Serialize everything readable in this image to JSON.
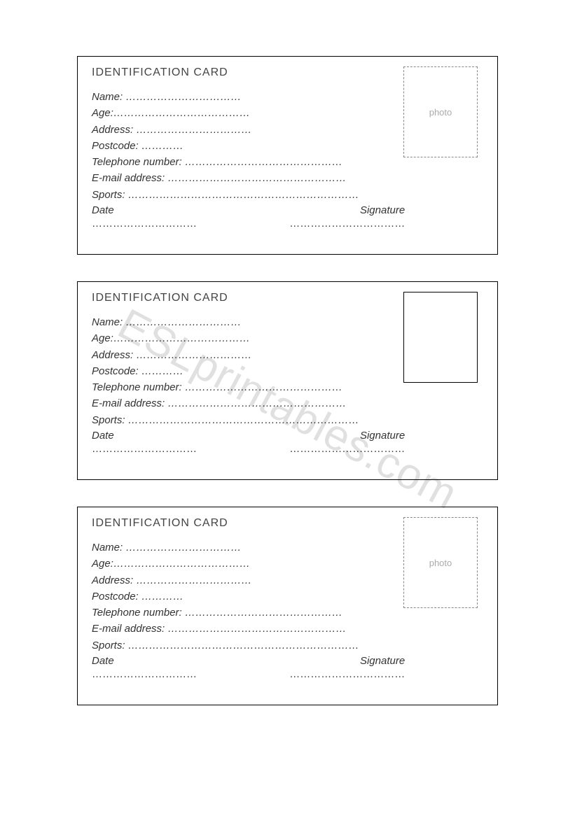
{
  "watermark": "ESLprintables.com",
  "cards": [
    {
      "title": "IDENTIFICATION CARD",
      "fields": {
        "name": "Name: ……………………………",
        "age": "Age:…………………………………",
        "address": "Address: ……………………………",
        "postcode": "Postcode:    …………",
        "telephone": "Telephone number: ………………………………………",
        "email": "E-mail address: ……………………………………………",
        "sports": "Sports: …………………………………………………………",
        "date": "Date",
        "signature": "Signature",
        "date_dots": "…………………………",
        "sig_dots": "……………………………"
      },
      "photo": {
        "style": "dashed",
        "label": "photo"
      }
    },
    {
      "title": "IDENTIFICATION CARD",
      "fields": {
        "name": "Name: ……………………………",
        "age": "Age:…………………………………",
        "address": "Address: ……………………………",
        "postcode": "Postcode:    …………",
        "telephone": "Telephone number: ………………………………………",
        "email": "E-mail address: ……………………………………………",
        "sports": "Sports: …………………………………………………………",
        "date": "Date",
        "signature": "Signature",
        "date_dots": "…………………………",
        "sig_dots": "……………………………"
      },
      "photo": {
        "style": "solid",
        "label": ""
      }
    },
    {
      "title": "IDENTIFICATION CARD",
      "fields": {
        "name": "Name: ……………………………",
        "age": "Age:…………………………………",
        "address": "Address: ……………………………",
        "postcode": "Postcode:    …………",
        "telephone": "Telephone number: ………………………………………",
        "email": "E-mail address: ……………………………………………",
        "sports": "Sports: …………………………………………………………",
        "date": "Date",
        "signature": "Signature",
        "date_dots": "…………………………",
        "sig_dots": "……………………………"
      },
      "photo": {
        "style": "dashed",
        "label": "photo"
      }
    }
  ]
}
